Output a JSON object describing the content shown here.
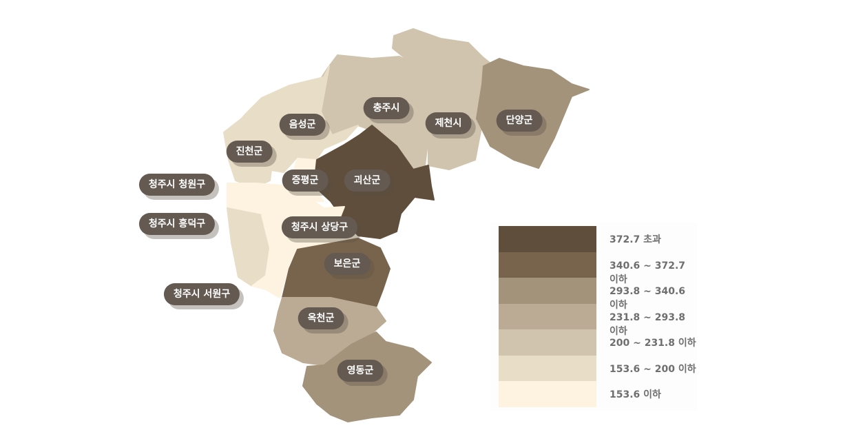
{
  "legend": [
    {
      "label": "372.7 초과",
      "color": "#5f4e3b"
    },
    {
      "label": "340.6 ~ 372.7 이하",
      "color": "#78644c"
    },
    {
      "label": "293.8 ~ 340.6 이하",
      "color": "#a4937b"
    },
    {
      "label": "231.8 ~ 293.8 이하",
      "color": "#bbab95"
    },
    {
      "label": "200 ~ 231.8 이하",
      "color": "#d1c4ae"
    },
    {
      "label": "153.6 ~ 200 이하",
      "color": "#e8ddc6"
    },
    {
      "label": "153.6 이하",
      "color": "#fdf3e0"
    }
  ],
  "regions": [
    {
      "name": "충주시",
      "class": 4
    },
    {
      "name": "제천시",
      "class": 4
    },
    {
      "name": "단양군",
      "class": 2
    },
    {
      "name": "음성군",
      "class": 5
    },
    {
      "name": "진천군",
      "class": 5
    },
    {
      "name": "증평군",
      "class": 6
    },
    {
      "name": "괴산군",
      "class": 0
    },
    {
      "name": "청주시 청원구",
      "class": 6
    },
    {
      "name": "청주시 흥덕구",
      "class": 5
    },
    {
      "name": "청주시 상당구",
      "class": 6
    },
    {
      "name": "청주시 서원구",
      "class": 6
    },
    {
      "name": "보은군",
      "class": 1
    },
    {
      "name": "옥천군",
      "class": 3
    },
    {
      "name": "영동군",
      "class": 2
    }
  ]
}
